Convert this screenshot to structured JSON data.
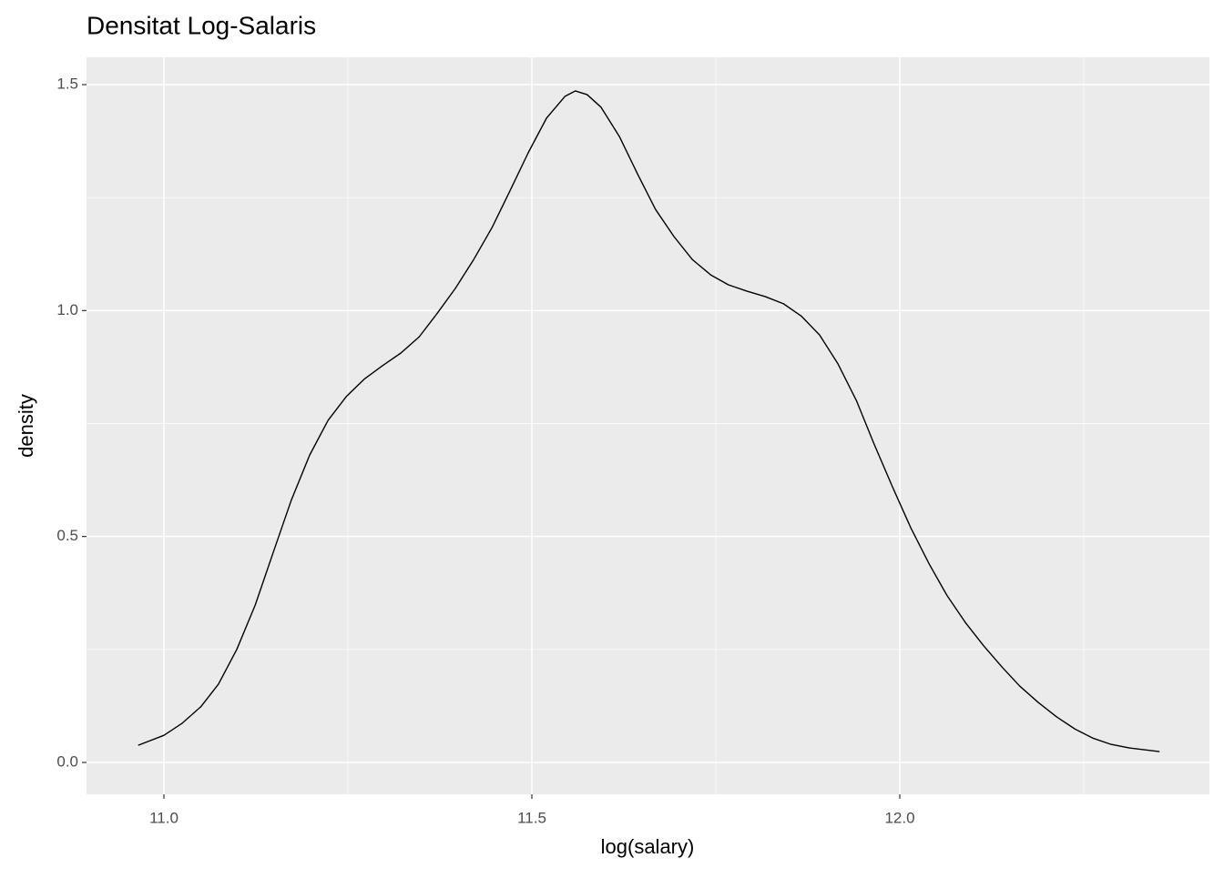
{
  "chart_data": {
    "type": "line",
    "title": "Densitat Log-Salaris",
    "xlabel": "log(salary)",
    "ylabel": "density",
    "x": [
      10.965,
      11.0,
      11.025,
      11.05,
      11.074,
      11.099,
      11.124,
      11.149,
      11.173,
      11.198,
      11.223,
      11.248,
      11.272,
      11.297,
      11.322,
      11.347,
      11.371,
      11.396,
      11.421,
      11.446,
      11.47,
      11.495,
      11.52,
      11.545,
      11.559,
      11.575,
      11.594,
      11.619,
      11.644,
      11.668,
      11.693,
      11.718,
      11.743,
      11.767,
      11.792,
      11.817,
      11.842,
      11.866,
      11.891,
      11.916,
      11.941,
      11.965,
      11.99,
      12.015,
      12.04,
      12.064,
      12.089,
      12.114,
      12.139,
      12.163,
      12.188,
      12.213,
      12.238,
      12.262,
      12.287,
      12.312,
      12.353
    ],
    "series": [
      {
        "color": "#000000",
        "values": [
          0.038,
          0.06,
          0.087,
          0.123,
          0.173,
          0.25,
          0.348,
          0.467,
          0.58,
          0.68,
          0.757,
          0.81,
          0.848,
          0.878,
          0.906,
          0.942,
          0.993,
          1.049,
          1.113,
          1.184,
          1.264,
          1.349,
          1.426,
          1.474,
          1.486,
          1.478,
          1.45,
          1.385,
          1.301,
          1.224,
          1.164,
          1.113,
          1.079,
          1.057,
          1.043,
          1.031,
          1.015,
          0.988,
          0.946,
          0.882,
          0.801,
          0.705,
          0.61,
          0.519,
          0.439,
          0.37,
          0.31,
          0.258,
          0.211,
          0.169,
          0.133,
          0.101,
          0.074,
          0.054,
          0.04,
          0.032,
          0.024
        ]
      }
    ],
    "xlim": [
      10.8948,
      12.4208
    ],
    "ylim": [
      -0.0705,
      1.5604
    ],
    "xticks": [
      {
        "value": 11,
        "label": "11.0"
      },
      11.5,
      {
        "value": 12,
        "label": "12.0"
      }
    ],
    "yticks": [
      {
        "value": 0,
        "label": "0.0"
      },
      0.5,
      {
        "value": 1,
        "label": "1.0"
      },
      1.5
    ],
    "grid": true
  }
}
